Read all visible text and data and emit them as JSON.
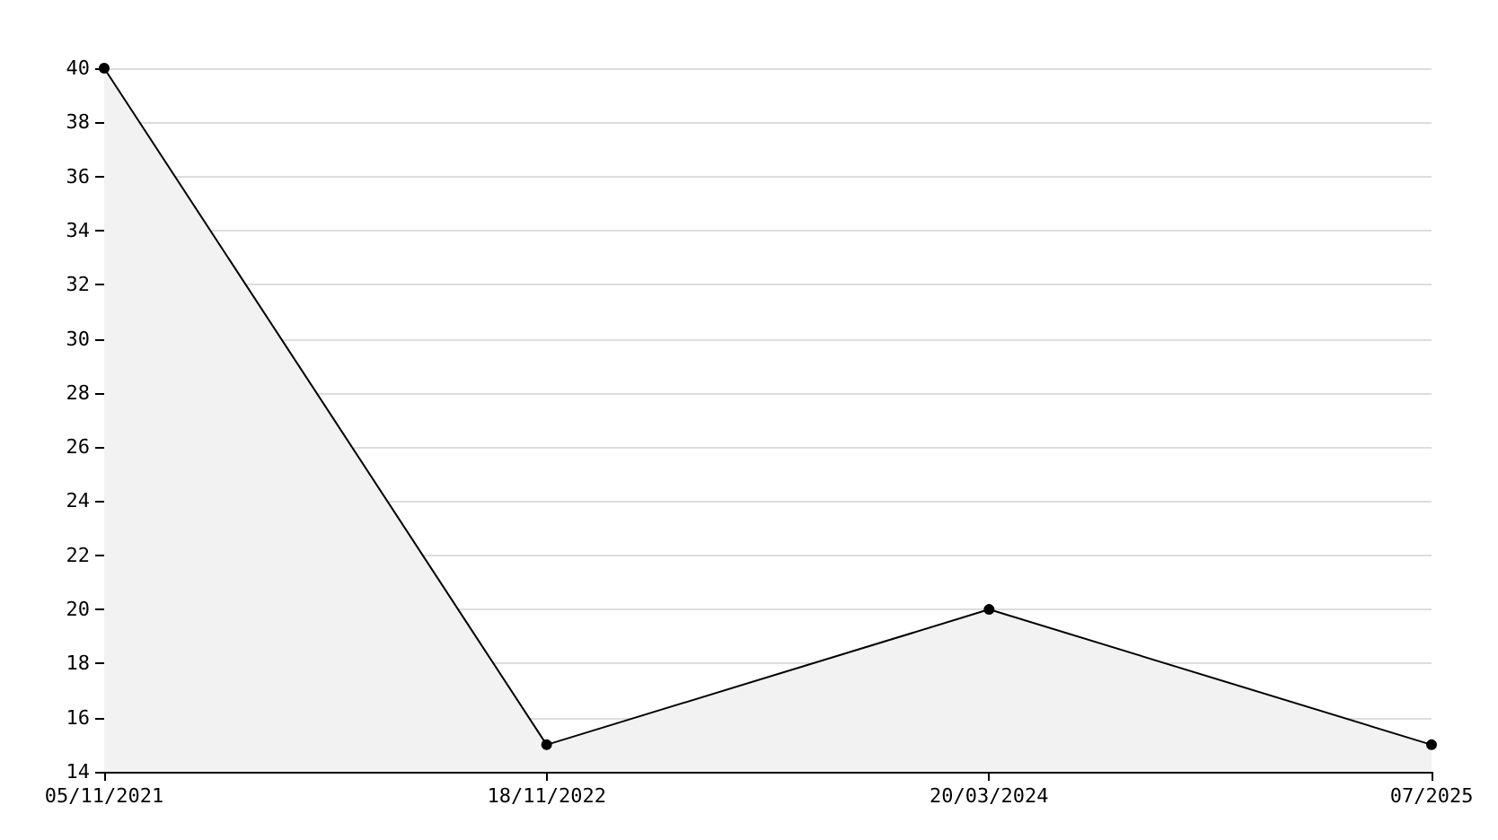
{
  "chart_data": {
    "type": "area",
    "categories": [
      "05/11/2021",
      "18/11/2022",
      "20/03/2024",
      "07/2025"
    ],
    "series": [
      {
        "color": "#000000",
        "values": [
          40,
          15,
          20,
          15
        ]
      }
    ],
    "ylim": [
      14,
      40
    ],
    "yticks": [
      14,
      16,
      18,
      20,
      22,
      24,
      26,
      28,
      30,
      32,
      34,
      36,
      38,
      40
    ],
    "grid": "y",
    "marker": "circle",
    "line_style": "solid"
  }
}
